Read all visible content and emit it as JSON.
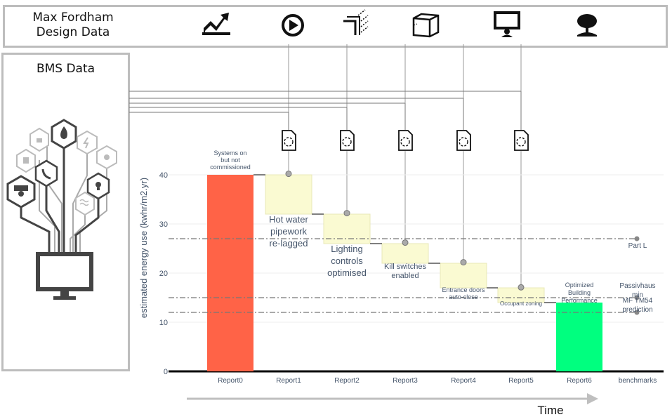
{
  "header": {
    "title_line1": "Max Fordham",
    "title_line2": "Design Data",
    "icons": [
      "trend-chart-icon",
      "play-circle-icon",
      "lighting-diagram-icon",
      "cube-icon",
      "monitor-user-icon",
      "tree-icon"
    ]
  },
  "bms": {
    "title": "BMS Data",
    "icons": [
      "cctv-icon",
      "window-icon",
      "lock-icon",
      "phone-icon",
      "fire-icon",
      "power-icon",
      "gear-icon",
      "lightbulb-icon",
      "hvac-icon",
      "monitor-icon"
    ]
  },
  "time_label": "Time",
  "colors": {
    "start_bar": "#ff6347",
    "end_bar": "#00ff7f",
    "step_box": "#fafad2",
    "benchmark_line": "#777777",
    "connector": "#999999",
    "axis_text": "#44546a"
  },
  "chart_data": {
    "type": "bar",
    "subtype": "waterfall",
    "categories": [
      "Report0",
      "Report1",
      "Report2",
      "Report3",
      "Report4",
      "Report5",
      "Report6",
      "benchmarks"
    ],
    "ylabel": "estimated energy use (kwhr/m2.yr)",
    "ylim": [
      0,
      45
    ],
    "yticks": [
      0,
      10,
      20,
      30,
      40
    ],
    "grid": true,
    "steps": [
      {
        "category": "Report0",
        "kind": "total",
        "value": 40,
        "label": "Systems on but not commissioned"
      },
      {
        "category": "Report1",
        "kind": "decrease",
        "from": 40,
        "to": 32,
        "marker": 40.2,
        "label": "Hot water pipework re-lagged"
      },
      {
        "category": "Report2",
        "kind": "decrease",
        "from": 32,
        "to": 26,
        "marker": 32.2,
        "label": "Lighting controls optimised"
      },
      {
        "category": "Report3",
        "kind": "decrease",
        "from": 26,
        "to": 22,
        "marker": 26.2,
        "label": "Kill switches enabled"
      },
      {
        "category": "Report4",
        "kind": "decrease",
        "from": 22,
        "to": 17,
        "marker": 22.2,
        "label": "Entrance doors auto-close"
      },
      {
        "category": "Report5",
        "kind": "decrease",
        "from": 17,
        "to": 14,
        "marker": 17.1,
        "label": "Occupant zoning"
      },
      {
        "category": "Report6",
        "kind": "total",
        "value": 14,
        "label": "Optimized Building Performance"
      }
    ],
    "benchmarks": [
      {
        "name": "Part L",
        "value": 27
      },
      {
        "name": "Passivhaus min",
        "value": 15
      },
      {
        "name": "MF TM54 prediction",
        "value": 12
      }
    ]
  }
}
